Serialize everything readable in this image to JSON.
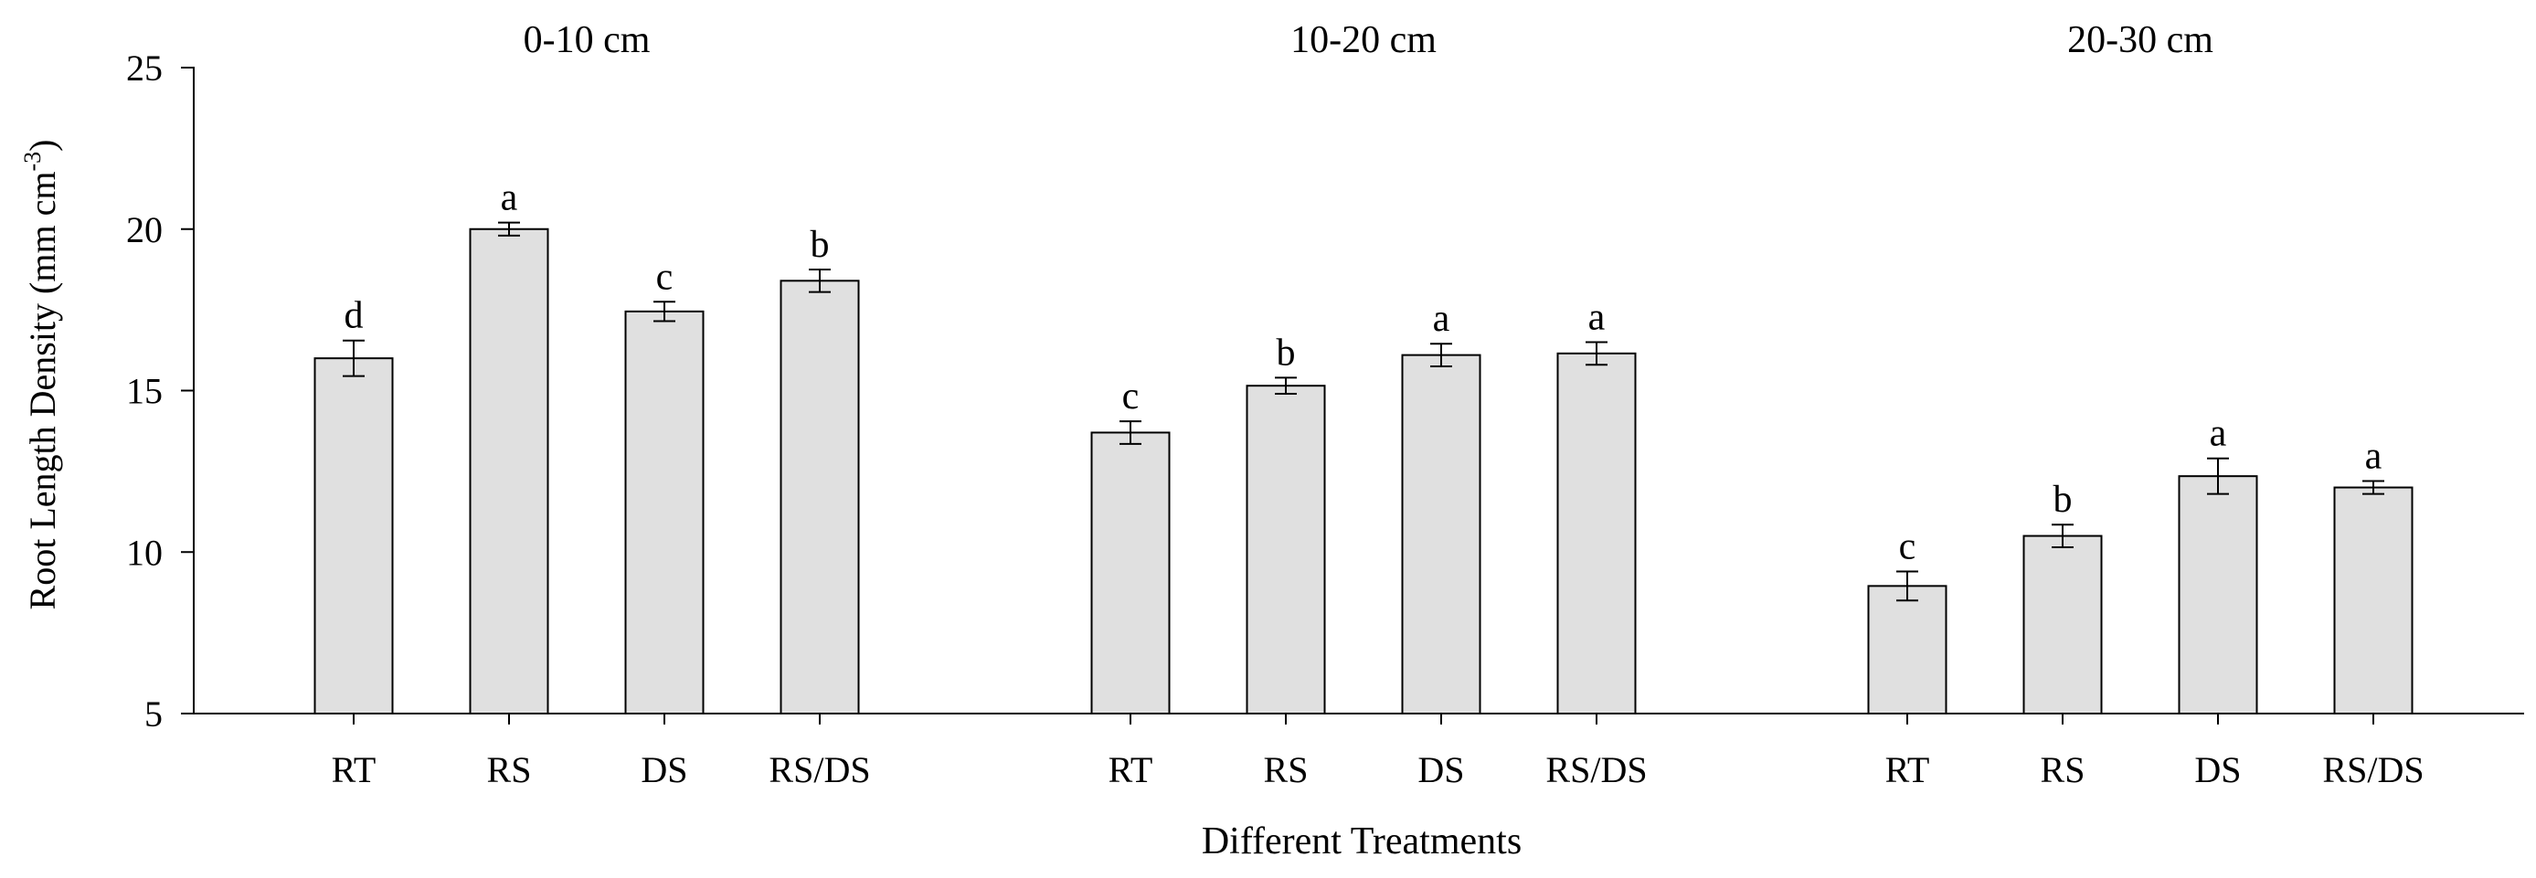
{
  "chart_data": {
    "type": "bar",
    "ylabel": "Root Length Density (mm cm",
    "ylabel_sup": "-3",
    "ylabel_close": ")",
    "xlabel": "Different Treatments",
    "ylim": [
      5,
      25
    ],
    "yticks": [
      5,
      10,
      15,
      20,
      25
    ],
    "bar_color": "#e0e0e0",
    "groups": [
      {
        "title": "0-10 cm",
        "bars": [
          {
            "category": "RT",
            "value": 16.0,
            "err": 0.55,
            "letter": "d"
          },
          {
            "category": "RS",
            "value": 20.0,
            "err": 0.2,
            "letter": "a"
          },
          {
            "category": "DS",
            "value": 17.45,
            "err": 0.3,
            "letter": "c"
          },
          {
            "category": "RS/DS",
            "value": 18.4,
            "err": 0.35,
            "letter": "b"
          }
        ]
      },
      {
        "title": "10-20 cm",
        "bars": [
          {
            "category": "RT",
            "value": 13.7,
            "err": 0.35,
            "letter": "c"
          },
          {
            "category": "RS",
            "value": 15.15,
            "err": 0.25,
            "letter": "b"
          },
          {
            "category": "DS",
            "value": 16.1,
            "err": 0.35,
            "letter": "a"
          },
          {
            "category": "RS/DS",
            "value": 16.15,
            "err": 0.35,
            "letter": "a"
          }
        ]
      },
      {
        "title": "20-30 cm",
        "bars": [
          {
            "category": "RT",
            "value": 8.95,
            "err": 0.45,
            "letter": "c"
          },
          {
            "category": "RS",
            "value": 10.5,
            "err": 0.35,
            "letter": "b"
          },
          {
            "category": "DS",
            "value": 12.35,
            "err": 0.55,
            "letter": "a"
          },
          {
            "category": "RS/DS",
            "value": 12.0,
            "err": 0.2,
            "letter": "a"
          }
        ]
      }
    ]
  }
}
